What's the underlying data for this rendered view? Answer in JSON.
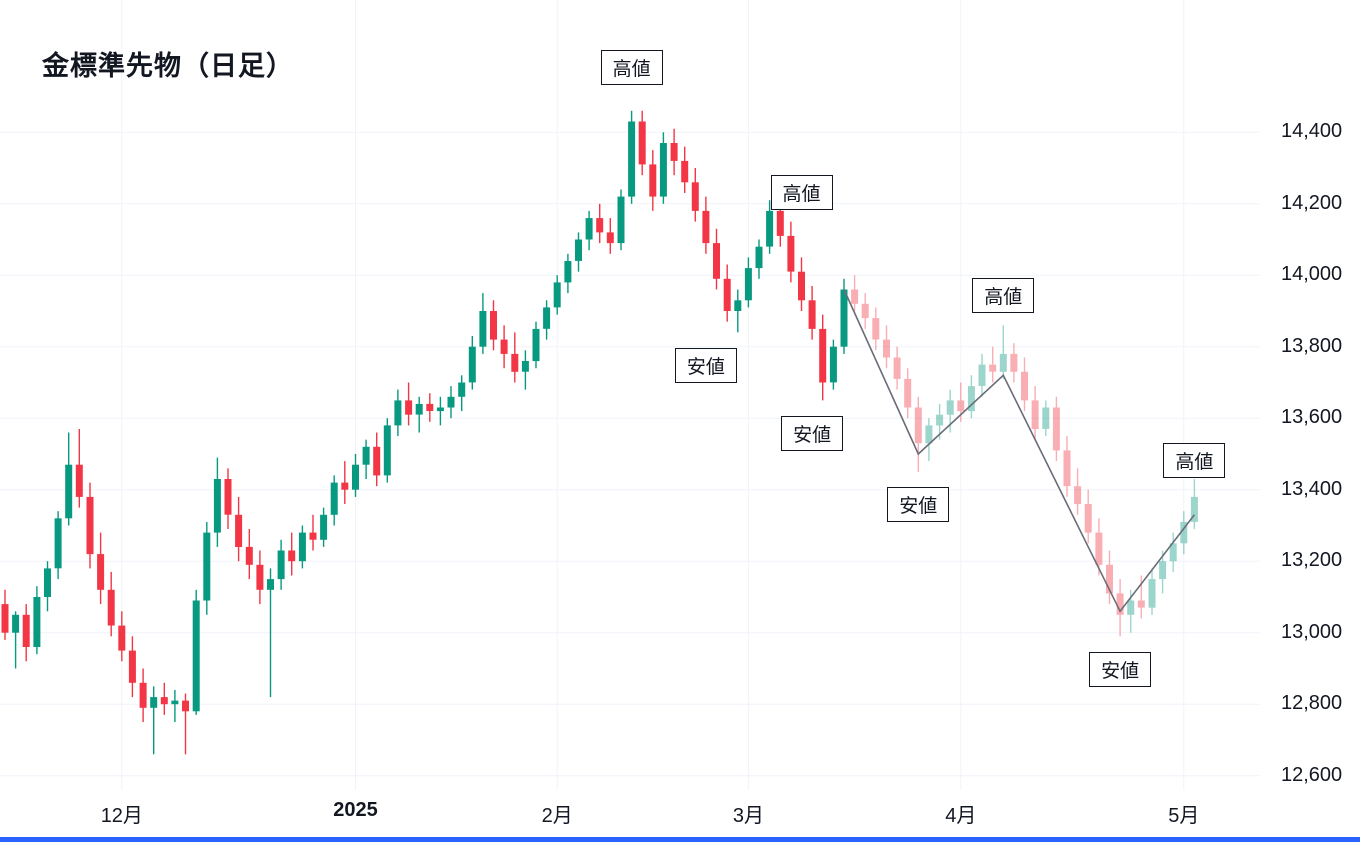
{
  "chart_data": {
    "type": "candlestick",
    "title": "金標準先物（日足）",
    "ohlc_format": [
      "open",
      "high",
      "low",
      "close"
    ],
    "fade_from_index": 80,
    "candles": [
      [
        13080,
        13120,
        12980,
        13000
      ],
      [
        13000,
        13060,
        12900,
        13050
      ],
      [
        13050,
        13080,
        12920,
        12960
      ],
      [
        12960,
        13130,
        12940,
        13100
      ],
      [
        13100,
        13200,
        13060,
        13180
      ],
      [
        13180,
        13340,
        13150,
        13320
      ],
      [
        13320,
        13560,
        13300,
        13470
      ],
      [
        13470,
        13570,
        13350,
        13380
      ],
      [
        13380,
        13420,
        13180,
        13220
      ],
      [
        13220,
        13280,
        13080,
        13120
      ],
      [
        13120,
        13170,
        12990,
        13020
      ],
      [
        13020,
        13060,
        12920,
        12950
      ],
      [
        12950,
        12990,
        12820,
        12860
      ],
      [
        12860,
        12900,
        12750,
        12790
      ],
      [
        12790,
        12850,
        12660,
        12820
      ],
      [
        12820,
        12860,
        12770,
        12800
      ],
      [
        12800,
        12840,
        12750,
        12810
      ],
      [
        12810,
        12830,
        12660,
        12780
      ],
      [
        12780,
        13120,
        12770,
        13090
      ],
      [
        13090,
        13310,
        13050,
        13280
      ],
      [
        13280,
        13490,
        13240,
        13430
      ],
      [
        13430,
        13460,
        13290,
        13330
      ],
      [
        13330,
        13380,
        13200,
        13240
      ],
      [
        13240,
        13290,
        13150,
        13190
      ],
      [
        13190,
        13230,
        13080,
        13120
      ],
      [
        13120,
        13180,
        12820,
        13150
      ],
      [
        13150,
        13260,
        13120,
        13230
      ],
      [
        13230,
        13280,
        13160,
        13200
      ],
      [
        13200,
        13300,
        13180,
        13280
      ],
      [
        13280,
        13330,
        13230,
        13260
      ],
      [
        13260,
        13350,
        13240,
        13330
      ],
      [
        13330,
        13440,
        13300,
        13420
      ],
      [
        13420,
        13480,
        13360,
        13400
      ],
      [
        13400,
        13500,
        13380,
        13470
      ],
      [
        13470,
        13540,
        13430,
        13520
      ],
      [
        13520,
        13560,
        13410,
        13440
      ],
      [
        13440,
        13600,
        13420,
        13580
      ],
      [
        13580,
        13680,
        13550,
        13650
      ],
      [
        13650,
        13700,
        13580,
        13610
      ],
      [
        13610,
        13660,
        13560,
        13640
      ],
      [
        13640,
        13670,
        13590,
        13620
      ],
      [
        13620,
        13660,
        13580,
        13630
      ],
      [
        13630,
        13690,
        13600,
        13660
      ],
      [
        13660,
        13720,
        13620,
        13700
      ],
      [
        13700,
        13830,
        13680,
        13800
      ],
      [
        13800,
        13950,
        13780,
        13900
      ],
      [
        13900,
        13930,
        13790,
        13820
      ],
      [
        13820,
        13860,
        13740,
        13780
      ],
      [
        13780,
        13840,
        13700,
        13730
      ],
      [
        13730,
        13790,
        13680,
        13760
      ],
      [
        13760,
        13870,
        13740,
        13850
      ],
      [
        13850,
        13930,
        13820,
        13910
      ],
      [
        13910,
        14000,
        13890,
        13980
      ],
      [
        13980,
        14060,
        13950,
        14040
      ],
      [
        14040,
        14120,
        14010,
        14100
      ],
      [
        14100,
        14180,
        14070,
        14160
      ],
      [
        14160,
        14200,
        14090,
        14120
      ],
      [
        14120,
        14160,
        14060,
        14090
      ],
      [
        14090,
        14240,
        14070,
        14220
      ],
      [
        14220,
        14460,
        14200,
        14430
      ],
      [
        14430,
        14460,
        14280,
        14310
      ],
      [
        14310,
        14350,
        14180,
        14220
      ],
      [
        14220,
        14400,
        14200,
        14370
      ],
      [
        14370,
        14410,
        14280,
        14320
      ],
      [
        14320,
        14360,
        14230,
        14260
      ],
      [
        14260,
        14300,
        14150,
        14180
      ],
      [
        14180,
        14220,
        14060,
        14090
      ],
      [
        14090,
        14130,
        13960,
        13990
      ],
      [
        13990,
        14030,
        13870,
        13900
      ],
      [
        13900,
        13960,
        13840,
        13930
      ],
      [
        13930,
        14050,
        13910,
        14020
      ],
      [
        14020,
        14100,
        13990,
        14080
      ],
      [
        14080,
        14210,
        14060,
        14180
      ],
      [
        14180,
        14200,
        14080,
        14110
      ],
      [
        14110,
        14150,
        13980,
        14010
      ],
      [
        14010,
        14050,
        13900,
        13930
      ],
      [
        13930,
        13970,
        13820,
        13850
      ],
      [
        13850,
        13890,
        13650,
        13700
      ],
      [
        13700,
        13820,
        13680,
        13800
      ],
      [
        13800,
        13990,
        13780,
        13960
      ],
      [
        13960,
        14000,
        13900,
        13920
      ],
      [
        13920,
        13950,
        13850,
        13880
      ],
      [
        13880,
        13910,
        13790,
        13820
      ],
      [
        13820,
        13860,
        13740,
        13770
      ],
      [
        13770,
        13800,
        13680,
        13710
      ],
      [
        13710,
        13740,
        13600,
        13630
      ],
      [
        13630,
        13660,
        13450,
        13530
      ],
      [
        13530,
        13600,
        13480,
        13580
      ],
      [
        13580,
        13640,
        13540,
        13610
      ],
      [
        13610,
        13680,
        13560,
        13650
      ],
      [
        13650,
        13700,
        13590,
        13620
      ],
      [
        13620,
        13720,
        13600,
        13690
      ],
      [
        13690,
        13780,
        13660,
        13750
      ],
      [
        13750,
        13800,
        13700,
        13730
      ],
      [
        13730,
        13860,
        13710,
        13780
      ],
      [
        13780,
        13810,
        13700,
        13730
      ],
      [
        13730,
        13770,
        13620,
        13650
      ],
      [
        13650,
        13690,
        13540,
        13570
      ],
      [
        13570,
        13650,
        13550,
        13630
      ],
      [
        13630,
        13660,
        13480,
        13510
      ],
      [
        13510,
        13550,
        13380,
        13410
      ],
      [
        13410,
        13460,
        13330,
        13360
      ],
      [
        13360,
        13400,
        13250,
        13280
      ],
      [
        13280,
        13320,
        13160,
        13190
      ],
      [
        13190,
        13230,
        13080,
        13110
      ],
      [
        13110,
        13150,
        12990,
        13050
      ],
      [
        13050,
        13120,
        13000,
        13090
      ],
      [
        13090,
        13160,
        13040,
        13070
      ],
      [
        13070,
        13180,
        13050,
        13150
      ],
      [
        13150,
        13230,
        13110,
        13200
      ],
      [
        13200,
        13280,
        13170,
        13250
      ],
      [
        13250,
        13340,
        13220,
        13310
      ],
      [
        13310,
        13430,
        13290,
        13380
      ]
    ],
    "y_axis": {
      "range_top_price": 14770,
      "range_bottom_price": 12560,
      "ticks": [
        {
          "price": 14400,
          "label": "14,400"
        },
        {
          "price": 14200,
          "label": "14,200"
        },
        {
          "price": 14000,
          "label": "14,000"
        },
        {
          "price": 13800,
          "label": "13,800"
        },
        {
          "price": 13600,
          "label": "13,600"
        },
        {
          "price": 13400,
          "label": "13,400"
        },
        {
          "price": 13200,
          "label": "13,200"
        },
        {
          "price": 13000,
          "label": "13,000"
        },
        {
          "price": 12800,
          "label": "12,800"
        },
        {
          "price": 12600,
          "label": "12,600"
        }
      ]
    },
    "x_axis": {
      "month_ticks": [
        {
          "index": 11,
          "label": "12月",
          "bold": false
        },
        {
          "index": 33,
          "label": "2025",
          "bold": true
        },
        {
          "index": 52,
          "label": "2月",
          "bold": false
        },
        {
          "index": 70,
          "label": "3月",
          "bold": false
        },
        {
          "index": 90,
          "label": "4月",
          "bold": false
        },
        {
          "index": 111,
          "label": "5月",
          "bold": false
        }
      ]
    },
    "annotations": [
      {
        "label": "高値",
        "index": 59,
        "price": 14500,
        "side": "above"
      },
      {
        "label": "高値",
        "index": 75,
        "price": 14150,
        "side": "above"
      },
      {
        "label": "安値",
        "index": 66,
        "price": 13830,
        "side": "below"
      },
      {
        "label": "安値",
        "index": 76,
        "price": 13640,
        "side": "below"
      },
      {
        "label": "安値",
        "index": 86,
        "price": 13440,
        "side": "below"
      },
      {
        "label": "高値",
        "index": 94,
        "price": 13860,
        "side": "above"
      },
      {
        "label": "安値",
        "index": 105,
        "price": 12980,
        "side": "below"
      },
      {
        "label": "高値",
        "index": 112,
        "price": 13400,
        "side": "above"
      }
    ],
    "zigzag": [
      {
        "index": 79,
        "price": 13960
      },
      {
        "index": 86,
        "price": 13500
      },
      {
        "index": 94,
        "price": 13720
      },
      {
        "index": 105,
        "price": 13060
      },
      {
        "index": 112,
        "price": 13330
      }
    ],
    "colors": {
      "up": "#089981",
      "down": "#f23645",
      "faded_opacity": 0.4,
      "zigzag": "#6a6d78",
      "grid": "#f0f3fa",
      "text": "#131722",
      "annotation_border": "#131722",
      "annotation_bg": "#ffffff",
      "scrollbar_blue": "#2962ff",
      "background": "#ffffff"
    }
  }
}
